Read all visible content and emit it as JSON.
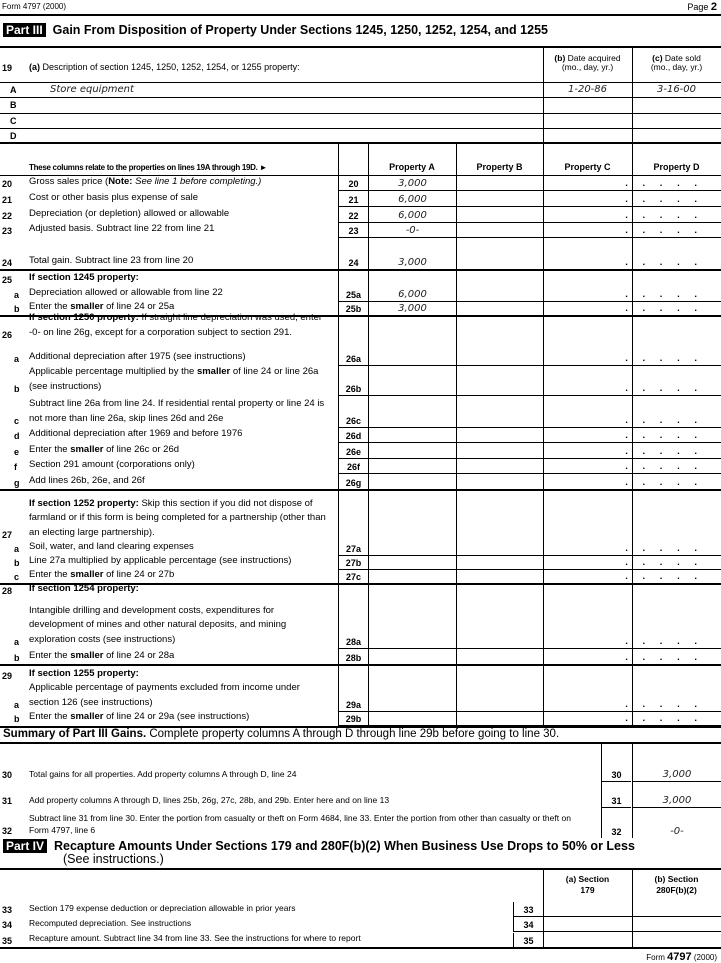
{
  "header": {
    "form_label": "Form 4797 (2000)",
    "page_label": "Page",
    "page_num": "2"
  },
  "part3": {
    "tag": "Part III",
    "title": "Gain From Disposition of Property Under Sections 1245, 1250, 1252, 1254, and 1255"
  },
  "line19": {
    "num": "19",
    "a_bold": "(a)",
    "a_text": " Description of section 1245, 1250, 1252, 1254, or 1255 property:",
    "b_bold": "(b)",
    "b_text": " Date acquired",
    "b_sub": "(mo., day, yr.)",
    "c_bold": "(c)",
    "c_text": " Date sold",
    "c_sub": "(mo., day, yr.)",
    "rows": [
      {
        "letter": "A",
        "desc": "Store equipment",
        "acquired": "1-20-86",
        "sold": "3-16-00"
      },
      {
        "letter": "B",
        "desc": "",
        "acquired": "",
        "sold": ""
      },
      {
        "letter": "C",
        "desc": "",
        "acquired": "",
        "sold": ""
      },
      {
        "letter": "D",
        "desc": "",
        "acquired": "",
        "sold": ""
      }
    ]
  },
  "columns": {
    "relate": "These columns relate to the properties on lines 19A through 19D.",
    "arrow": "►",
    "props": [
      "Property A",
      "Property B",
      "Property C",
      "Property D"
    ]
  },
  "lines": [
    {
      "num": "20",
      "parts": [
        {
          "t": "Gross sales price ("
        },
        {
          "t": "Note:",
          "b": 1
        },
        {
          "t": " See line 1 before completing.)",
          "i": 1
        }
      ],
      "code": "20",
      "values": [
        "3,000",
        "",
        "",
        ""
      ]
    },
    {
      "num": "21",
      "parts": [
        {
          "t": "Cost or other basis plus expense of sale"
        }
      ],
      "code": "21",
      "values": [
        "6,000",
        "",
        "",
        ""
      ]
    },
    {
      "num": "22",
      "parts": [
        {
          "t": "Depreciation (or depletion) allowed or allowable"
        }
      ],
      "code": "22",
      "values": [
        "6,000",
        "",
        "",
        ""
      ]
    },
    {
      "num": "23",
      "parts": [
        {
          "t": "Adjusted basis. Subtract line 22 from line 21"
        }
      ],
      "code": "23",
      "values": [
        "-0-",
        "",
        "",
        ""
      ]
    },
    {
      "num": "24",
      "parts": [
        {
          "t": "Total gain. Subtract line 23 from line 20"
        }
      ],
      "code": "24",
      "values": [
        "3,000",
        "",
        "",
        ""
      ]
    },
    {
      "num": "25",
      "parts": [
        {
          "t": "If section 1245 property:",
          "b": 1
        }
      ],
      "code": "",
      "head": 1,
      "values": [
        "",
        "",
        "",
        ""
      ]
    },
    {
      "sub": "a",
      "parts": [
        {
          "t": "Depreciation allowed or allowable from line 22"
        }
      ],
      "code": "25a",
      "values": [
        "6,000",
        "",
        "",
        ""
      ]
    },
    {
      "sub": "b",
      "parts": [
        {
          "t": "Enter the "
        },
        {
          "t": "smaller",
          "b": 1
        },
        {
          "t": " of line 24 or 25a"
        }
      ],
      "code": "25b",
      "values": [
        "3,000",
        "",
        "",
        ""
      ]
    },
    {
      "num": "26",
      "parts": [
        {
          "t": "If section 1250 property:",
          "b": 1
        },
        {
          "t": " If straight line depreciation was used, enter -0- on line 26g, except for a corporation subject to section 291."
        }
      ],
      "code": "",
      "head": 1,
      "values": [
        "",
        "",
        "",
        ""
      ]
    },
    {
      "sub": "a",
      "parts": [
        {
          "t": "Additional depreciation after 1975 (see instructions)"
        }
      ],
      "code": "26a",
      "values": [
        "",
        "",
        "",
        ""
      ]
    },
    {
      "sub": "b",
      "parts": [
        {
          "t": "Applicable percentage multiplied by the "
        },
        {
          "t": "smaller",
          "b": 1
        },
        {
          "t": " of line 24 or line 26a (see instructions)"
        }
      ],
      "code": "26b",
      "values": [
        "",
        "",
        "",
        ""
      ]
    },
    {
      "sub": "c",
      "parts": [
        {
          "t": "Subtract line 26a from line 24. If residential rental property or line 24 is not more than line 26a, skip lines 26d and 26e"
        }
      ],
      "code": "26c",
      "values": [
        "",
        "",
        "",
        ""
      ]
    },
    {
      "sub": "d",
      "parts": [
        {
          "t": "Additional depreciation after 1969 and before 1976"
        }
      ],
      "code": "26d",
      "values": [
        "",
        "",
        "",
        ""
      ]
    },
    {
      "sub": "e",
      "parts": [
        {
          "t": "Enter the "
        },
        {
          "t": "smaller",
          "b": 1
        },
        {
          "t": " of line 26c or 26d"
        }
      ],
      "code": "26e",
      "values": [
        "",
        "",
        "",
        ""
      ]
    },
    {
      "sub": "f",
      "parts": [
        {
          "t": "Section 291 amount (corporations only)"
        }
      ],
      "code": "26f",
      "values": [
        "",
        "",
        "",
        ""
      ]
    },
    {
      "sub": "g",
      "parts": [
        {
          "t": "Add lines 26b, 26e, and 26f"
        }
      ],
      "code": "26g",
      "values": [
        "",
        "",
        "",
        ""
      ]
    },
    {
      "num": "27",
      "parts": [
        {
          "t": "If section 1252 property:",
          "b": 1
        },
        {
          "t": " Skip this section if you did not dispose of farmland or if this form is being completed for a partnership (other than an electing large partnership)."
        }
      ],
      "code": "",
      "head": 1,
      "values": [
        "",
        "",
        "",
        ""
      ]
    },
    {
      "sub": "a",
      "parts": [
        {
          "t": "Soil, water, and land clearing expenses"
        }
      ],
      "code": "27a",
      "values": [
        "",
        "",
        "",
        ""
      ]
    },
    {
      "sub": "b",
      "parts": [
        {
          "t": "Line 27a multiplied by applicable percentage (see instructions)"
        }
      ],
      "code": "27b",
      "values": [
        "",
        "",
        "",
        ""
      ]
    },
    {
      "sub": "c",
      "parts": [
        {
          "t": "Enter the "
        },
        {
          "t": "smaller",
          "b": 1
        },
        {
          "t": " of line 24 or 27b"
        }
      ],
      "code": "27c",
      "values": [
        "",
        "",
        "",
        ""
      ]
    },
    {
      "num": "28",
      "parts": [
        {
          "t": "If section 1254 property:",
          "b": 1
        }
      ],
      "code": "",
      "head": 1,
      "values": [
        "",
        "",
        "",
        ""
      ]
    },
    {
      "sub": "a",
      "parts": [
        {
          "t": "Intangible drilling and development costs, expenditures for development of mines and other natural deposits, and mining exploration costs (see instructions)"
        }
      ],
      "code": "28a",
      "values": [
        "",
        "",
        "",
        ""
      ]
    },
    {
      "sub": "b",
      "parts": [
        {
          "t": "Enter the "
        },
        {
          "t": "smaller",
          "b": 1
        },
        {
          "t": " of line 24 or 28a"
        }
      ],
      "code": "28b",
      "values": [
        "",
        "",
        "",
        ""
      ]
    },
    {
      "num": "29",
      "parts": [
        {
          "t": "If section 1255 property:",
          "b": 1
        }
      ],
      "code": "",
      "head": 1,
      "values": [
        "",
        "",
        "",
        ""
      ]
    },
    {
      "sub": "a",
      "parts": [
        {
          "t": "Applicable percentage of payments excluded from income under section 126 (see instructions)"
        }
      ],
      "code": "29a",
      "values": [
        "",
        "",
        "",
        ""
      ]
    },
    {
      "sub": "b",
      "parts": [
        {
          "t": "Enter the "
        },
        {
          "t": "smaller",
          "b": 1
        },
        {
          "t": " of line 24 or 29a (see instructions)"
        }
      ],
      "code": "29b",
      "values": [
        "",
        "",
        "",
        ""
      ]
    }
  ],
  "summary": {
    "bold": "Summary of Part III Gains.",
    "text": " Complete property columns A through D through line 29b before going to line 30.",
    "lines": [
      {
        "num": "30",
        "text": "Total gains for all properties. Add property columns A through D, line 24",
        "code": "30",
        "value": "3,000"
      },
      {
        "num": "31",
        "text": "Add property columns A through D, lines 25b, 26g, 27c, 28b, and 29b. Enter here and on line 13",
        "code": "31",
        "value": "3,000"
      },
      {
        "num": "32",
        "text": "Subtract line 31 from line 30. Enter the portion from casualty or theft on Form 4684, line 33. Enter the portion from other than casualty or theft on Form 4797, line 6",
        "code": "32",
        "value": "-0-"
      }
    ]
  },
  "part4": {
    "tag": "Part IV",
    "title": "Recapture Amounts Under Sections 179 and 280F(b)(2) When Business Use Drops to 50% or Less",
    "subtitle": "(See instructions.)",
    "col_a": "(a) Section",
    "col_a2": "179",
    "col_b": "(b) Section",
    "col_b2": "280F(b)(2)",
    "lines": [
      {
        "num": "33",
        "text": "Section 179 expense deduction or depreciation allowable in prior years",
        "code": "33",
        "a": "",
        "b": ""
      },
      {
        "num": "34",
        "text": "Recomputed depreciation. See instructions",
        "code": "34",
        "a": "",
        "b": ""
      },
      {
        "num": "35",
        "text": "Recapture amount. Subtract line 34 from line 33. See the instructions for where to report",
        "code": "35",
        "a": "",
        "b": ""
      }
    ]
  },
  "footer": {
    "form": "Form",
    "num": "4797",
    "year": "(2000)"
  }
}
